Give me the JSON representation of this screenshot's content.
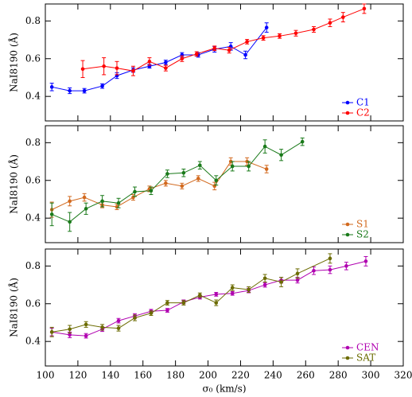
{
  "chart_data": [
    {
      "type": "line",
      "ylabel": "NaI8190 (Å)",
      "xlim": [
        100,
        320
      ],
      "xticks": [
        100,
        120,
        140,
        160,
        180,
        200,
        220,
        240,
        260,
        280,
        300,
        320
      ],
      "ylim": [
        0.27,
        0.89
      ],
      "yticks": [
        0.4,
        0.6,
        0.8
      ],
      "series": [
        {
          "name": "C1",
          "color": "#0000ff",
          "x": [
            104,
            115,
            124,
            135,
            144,
            154,
            164,
            174,
            184,
            194,
            204,
            214,
            223,
            236
          ],
          "values": [
            0.45,
            0.43,
            0.43,
            0.455,
            0.51,
            0.54,
            0.56,
            0.58,
            0.62,
            0.62,
            0.65,
            0.665,
            0.62,
            0.765
          ],
          "errors": [
            0.02,
            0.015,
            0.012,
            0.012,
            0.015,
            0.012,
            0.01,
            0.012,
            0.012,
            0.012,
            0.015,
            0.02,
            0.02,
            0.025
          ]
        },
        {
          "name": "C2",
          "color": "#ff0000",
          "x": [
            123,
            136,
            144,
            154,
            164,
            174,
            184,
            193,
            204,
            213,
            224,
            234,
            244,
            254,
            265,
            275,
            283,
            296
          ],
          "values": [
            0.545,
            0.56,
            0.55,
            0.535,
            0.585,
            0.55,
            0.6,
            0.625,
            0.655,
            0.645,
            0.69,
            0.71,
            0.72,
            0.735,
            0.755,
            0.79,
            0.82,
            0.865
          ],
          "errors": [
            0.045,
            0.045,
            0.035,
            0.025,
            0.02,
            0.015,
            0.015,
            0.012,
            0.012,
            0.015,
            0.012,
            0.012,
            0.012,
            0.015,
            0.015,
            0.02,
            0.025,
            0.025
          ]
        }
      ]
    },
    {
      "type": "line",
      "ylabel": "NaI8190 (Å)",
      "xlim": [
        100,
        320
      ],
      "xticks": [
        100,
        120,
        140,
        160,
        180,
        200,
        220,
        240,
        260,
        280,
        300,
        320
      ],
      "ylim": [
        0.27,
        0.89
      ],
      "yticks": [
        0.4,
        0.6,
        0.8
      ],
      "series": [
        {
          "name": "S1",
          "color": "#d2691e",
          "x": [
            104,
            115,
            124,
            135,
            144,
            154,
            164,
            174,
            184,
            194,
            204,
            214,
            224,
            236
          ],
          "values": [
            0.445,
            0.49,
            0.51,
            0.47,
            0.46,
            0.51,
            0.555,
            0.585,
            0.57,
            0.61,
            0.57,
            0.7,
            0.7,
            0.66
          ],
          "errors": [
            0.04,
            0.025,
            0.02,
            0.015,
            0.015,
            0.015,
            0.015,
            0.015,
            0.015,
            0.015,
            0.02,
            0.02,
            0.02,
            0.02
          ]
        },
        {
          "name": "S2",
          "color": "#1a7a1a",
          "x": [
            104,
            115,
            125,
            135,
            145,
            155,
            165,
            175,
            185,
            195,
            205,
            215,
            225,
            235,
            245,
            258
          ],
          "values": [
            0.42,
            0.38,
            0.45,
            0.49,
            0.48,
            0.54,
            0.545,
            0.635,
            0.64,
            0.68,
            0.6,
            0.675,
            0.675,
            0.78,
            0.735,
            0.805
          ],
          "errors": [
            0.06,
            0.05,
            0.03,
            0.03,
            0.025,
            0.025,
            0.02,
            0.02,
            0.02,
            0.02,
            0.025,
            0.025,
            0.025,
            0.035,
            0.03,
            0.02
          ]
        }
      ]
    },
    {
      "type": "line",
      "ylabel": "NaI8190 (Å)",
      "xlabel": "σ₀ (km/s)",
      "xlim": [
        100,
        320
      ],
      "xticks": [
        100,
        120,
        140,
        160,
        180,
        200,
        220,
        240,
        260,
        280,
        300,
        320
      ],
      "ylim": [
        0.27,
        0.89
      ],
      "yticks": [
        0.4,
        0.6,
        0.8
      ],
      "series": [
        {
          "name": "CEN",
          "color": "#b000b0",
          "x": [
            104,
            115,
            125,
            135,
            145,
            155,
            165,
            175,
            185,
            195,
            205,
            215,
            225,
            235,
            245,
            255,
            265,
            275,
            285,
            297
          ],
          "values": [
            0.45,
            0.435,
            0.43,
            0.465,
            0.51,
            0.535,
            0.56,
            0.565,
            0.61,
            0.635,
            0.65,
            0.655,
            0.67,
            0.7,
            0.725,
            0.725,
            0.775,
            0.78,
            0.8,
            0.825
          ],
          "errors": [
            0.02,
            0.015,
            0.012,
            0.012,
            0.012,
            0.012,
            0.01,
            0.01,
            0.01,
            0.01,
            0.01,
            0.01,
            0.012,
            0.012,
            0.015,
            0.015,
            0.02,
            0.02,
            0.02,
            0.025
          ]
        },
        {
          "name": "SAT",
          "color": "#6b6b00",
          "x": [
            104,
            115,
            125,
            135,
            145,
            155,
            165,
            175,
            185,
            195,
            205,
            215,
            225,
            235,
            245,
            255,
            275
          ],
          "values": [
            0.45,
            0.465,
            0.49,
            0.475,
            0.47,
            0.525,
            0.55,
            0.605,
            0.605,
            0.645,
            0.605,
            0.685,
            0.675,
            0.735,
            0.715,
            0.76,
            0.84
          ],
          "errors": [
            0.025,
            0.02,
            0.015,
            0.015,
            0.015,
            0.015,
            0.012,
            0.012,
            0.012,
            0.012,
            0.015,
            0.015,
            0.015,
            0.02,
            0.025,
            0.025,
            0.025
          ]
        }
      ]
    }
  ]
}
